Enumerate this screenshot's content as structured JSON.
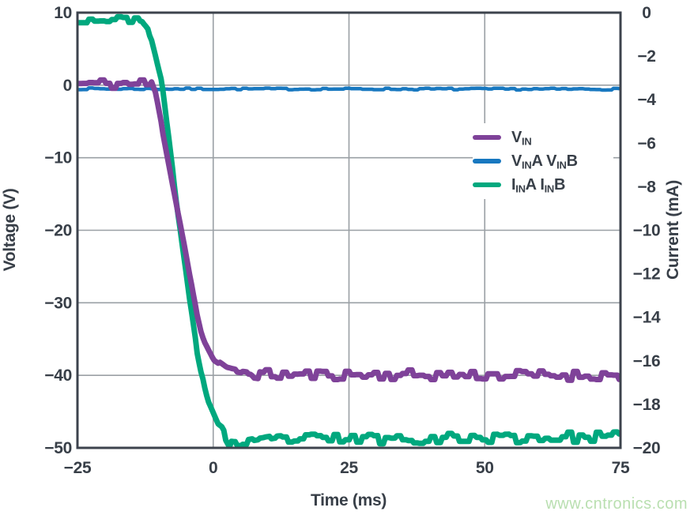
{
  "watermark": {
    "text": "www.cntronics.com",
    "color": "#b9dfb0"
  },
  "chart_data": {
    "type": "line",
    "title": "",
    "xlabel": "Time (ms)",
    "ylabel_left": "Voltage (V)",
    "ylabel_right": "Current (mA)",
    "xlim": [
      -25,
      75
    ],
    "ylim_left": [
      -50,
      10
    ],
    "ylim_right": [
      -20,
      0
    ],
    "x_ticks": [
      -25,
      0,
      25,
      50,
      75
    ],
    "y_ticks_left": [
      10,
      0,
      -10,
      -20,
      -30,
      -40,
      -50
    ],
    "y_ticks_right": [
      0,
      -2,
      -4,
      -6,
      -8,
      -10,
      -12,
      -14,
      -16,
      -18,
      -20
    ],
    "grid": true,
    "legend_position": "upper-right-inside",
    "colors": {
      "frame": "#3d434d",
      "grid": "#9aa0a5",
      "text": "#383f48"
    },
    "series": [
      {
        "id": "vin",
        "label": "VIN",
        "axis": "left",
        "unit": "V",
        "color": "#7f4299",
        "stroke": 7,
        "seed": 11,
        "z": 3,
        "noise_zones": [
          [
            -25,
            -11.3,
            0.75
          ],
          [
            -11.3,
            7,
            0.35
          ],
          [
            7,
            75,
            0.7
          ]
        ],
        "points": [
          [
            -25,
            0.2
          ],
          [
            -11.3,
            0.2
          ],
          [
            -10.6,
            -1.2
          ],
          [
            -5.2,
            -22.5
          ],
          [
            -3.4,
            -30
          ],
          [
            -1.8,
            -35.2
          ],
          [
            0,
            -37.8
          ],
          [
            2.5,
            -39.1
          ],
          [
            5,
            -39.5
          ],
          [
            9,
            -39.9
          ],
          [
            75,
            -40
          ]
        ]
      },
      {
        "id": "vina-vinb",
        "label": "VINA VINB",
        "axis": "left",
        "unit": "V",
        "color": "#1878c0",
        "stroke": 4.5,
        "seed": 7,
        "z": 1,
        "noise_zones": [
          [
            -25,
            75,
            0.12
          ]
        ],
        "points": [
          [
            -25,
            -0.5
          ],
          [
            75,
            -0.55
          ]
        ]
      },
      {
        "id": "iina-iinb",
        "label": "IINA IINB",
        "axis": "right",
        "unit": "mA",
        "color": "#00a87e",
        "stroke": 7,
        "seed": 23,
        "z": 2,
        "noise_zones": [
          [
            -25,
            -12.5,
            0.14
          ],
          [
            -12.5,
            1.5,
            0.08
          ],
          [
            1.5,
            75,
            0.24
          ]
        ],
        "points": [
          [
            -25,
            -0.35
          ],
          [
            -13.2,
            -0.3
          ],
          [
            -12,
            -0.7
          ],
          [
            -9.4,
            -3.3
          ],
          [
            -6.8,
            -8.6
          ],
          [
            -4.3,
            -13.3
          ],
          [
            -2.9,
            -15.7
          ],
          [
            -1.3,
            -17.6
          ],
          [
            1,
            -18.9
          ],
          [
            3,
            -19.8
          ],
          [
            6,
            -19.85
          ],
          [
            12,
            -19.6
          ],
          [
            75,
            -19.5
          ]
        ]
      }
    ],
    "legend": {
      "items": [
        {
          "series": "vin",
          "color": "#7f4299",
          "runs": [
            [
              "V",
              "IN"
            ]
          ]
        },
        {
          "series": "vina-vinb",
          "color": "#1878c0",
          "runs": [
            [
              "V",
              "IN"
            ],
            [
              "A ",
              ""
            ],
            [
              "V",
              "IN"
            ],
            [
              "B",
              ""
            ]
          ]
        },
        {
          "series": "iina-iinb",
          "color": "#00a87e",
          "runs": [
            [
              "I",
              "IN"
            ],
            [
              "A ",
              ""
            ],
            [
              "I",
              "IN"
            ],
            [
              "B",
              ""
            ]
          ]
        }
      ]
    }
  }
}
